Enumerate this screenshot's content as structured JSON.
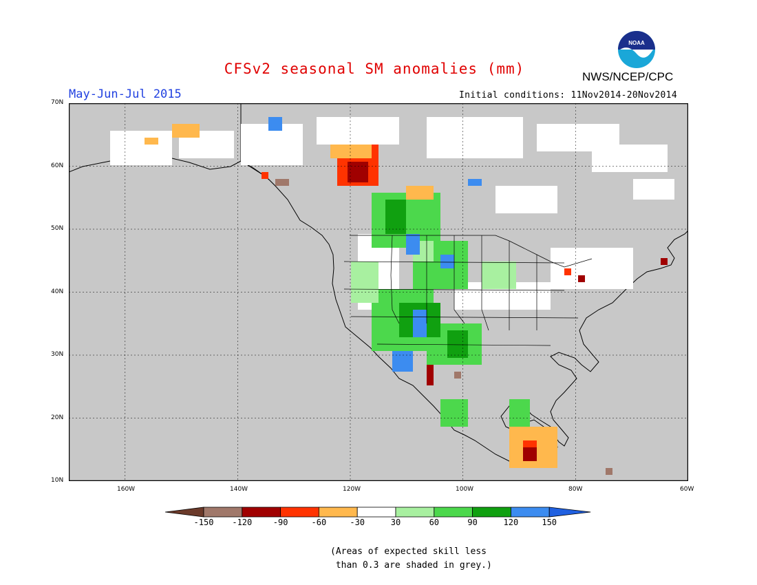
{
  "header": {
    "title": "CFSv2 seasonal SM anomalies (mm)",
    "agency": "NWS/NCEP/CPC",
    "season": "May-Jun-Jul 2015",
    "initial_conditions": "Initial conditions: 11Nov2014-20Nov2014",
    "logo_text": "NOAA"
  },
  "map": {
    "lat_labels": [
      "70N",
      "60N",
      "50N",
      "40N",
      "30N",
      "20N",
      "10N"
    ],
    "lon_labels": [
      "160W",
      "140W",
      "120W",
      "100W",
      "80W",
      "60W"
    ],
    "colors": {
      "ocean": "#c8c8c8",
      "land_frame": "#ffffff"
    }
  },
  "legend": {
    "labels": [
      "-150",
      "-120",
      "-90",
      "-60",
      "-30",
      "30",
      "60",
      "90",
      "120",
      "150"
    ],
    "colors": [
      "#6b3a2a",
      "#a0786a",
      "#a00000",
      "#ff3300",
      "#ffb84d",
      "#ffffff",
      "#a8f0a0",
      "#4cd84c",
      "#10a010",
      "#3c8cf0",
      "#2060e0"
    ]
  },
  "note": {
    "line1": "(Areas of expected skill less",
    "line2": " than 0.3 are shaded in grey.)"
  }
}
